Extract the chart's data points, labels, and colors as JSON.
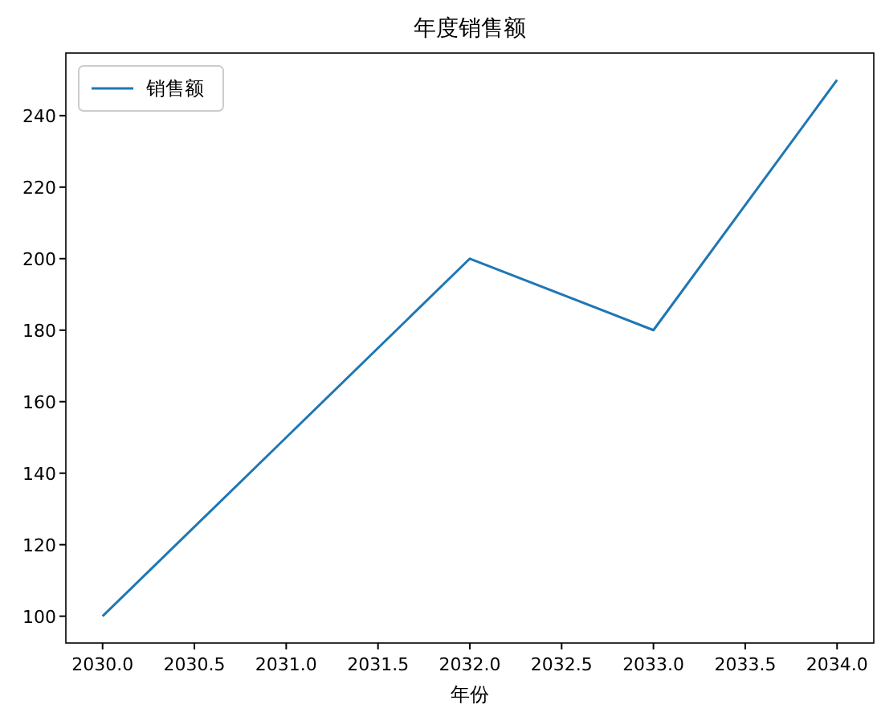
{
  "chart_data": {
    "type": "line",
    "title": "年度销售额",
    "xlabel": "年份",
    "x": [
      2030,
      2031,
      2032,
      2033,
      2034
    ],
    "series": [
      {
        "name": "销售额",
        "color": "#1f77b4",
        "values": [
          100,
          150,
          200,
          180,
          250
        ]
      }
    ],
    "xlim": [
      2029.8,
      2034.2
    ],
    "xticks": [
      {
        "value": 2030,
        "label": "2030.0"
      },
      {
        "value": 2030.5,
        "label": "2030.5"
      },
      {
        "value": 2031,
        "label": "2031.0"
      },
      {
        "value": 2031.5,
        "label": "2031.5"
      },
      {
        "value": 2032,
        "label": "2032.0"
      },
      {
        "value": 2032.5,
        "label": "2032.5"
      },
      {
        "value": 2033,
        "label": "2033.0"
      },
      {
        "value": 2033.5,
        "label": "2033.5"
      },
      {
        "value": 2034,
        "label": "2034.0"
      }
    ],
    "ylim": [
      92.5,
      257.5
    ],
    "yticks": [
      100,
      120,
      140,
      160,
      180,
      200,
      220,
      240
    ],
    "legend": "top left",
    "grid": false
  }
}
